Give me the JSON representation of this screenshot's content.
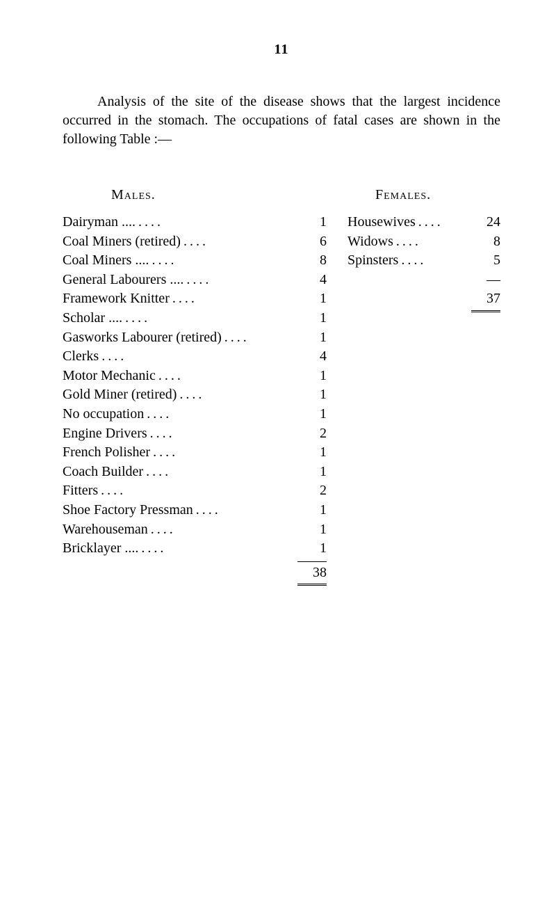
{
  "page_number": "11",
  "intro": "Analysis of the site of the disease shows that the largest incidence occurred in the stomach.  The occupations of fatal cases are shown in the following Table :—",
  "males_header": "Males.",
  "females_header": "Females.",
  "males": [
    {
      "label": "Dairyman   ....",
      "value": "1"
    },
    {
      "label": "Coal Miners (retired)",
      "value": "6"
    },
    {
      "label": "Coal Miners ....",
      "value": "8"
    },
    {
      "label": "General Labourers ....",
      "value": "4"
    },
    {
      "label": "Framework Knitter",
      "value": "1"
    },
    {
      "label": "Scholar        ....",
      "value": "1"
    },
    {
      "label": "Gasworks Labourer (retired)",
      "value": "1"
    },
    {
      "label": "Clerks",
      "value": "4"
    },
    {
      "label": "Motor Mechanic",
      "value": "1"
    },
    {
      "label": "Gold Miner (retired)",
      "value": "1"
    },
    {
      "label": "No occupation",
      "value": "1"
    },
    {
      "label": "Engine Drivers",
      "value": "2"
    },
    {
      "label": "French Polisher",
      "value": "1"
    },
    {
      "label": "Coach Builder",
      "value": "1"
    },
    {
      "label": "Fitters",
      "value": "2"
    },
    {
      "label": "Shoe Factory Pressman",
      "value": "1"
    },
    {
      "label": "Warehouseman",
      "value": "1"
    },
    {
      "label": "Bricklayer   ....",
      "value": "1"
    }
  ],
  "males_total": "38",
  "females": [
    {
      "label": "Housewives",
      "value": "24"
    },
    {
      "label": "Widows",
      "value": "8"
    },
    {
      "label": "Spinsters",
      "value": "5"
    }
  ],
  "females_dash": "—",
  "females_total": "37",
  "females_equals": "="
}
